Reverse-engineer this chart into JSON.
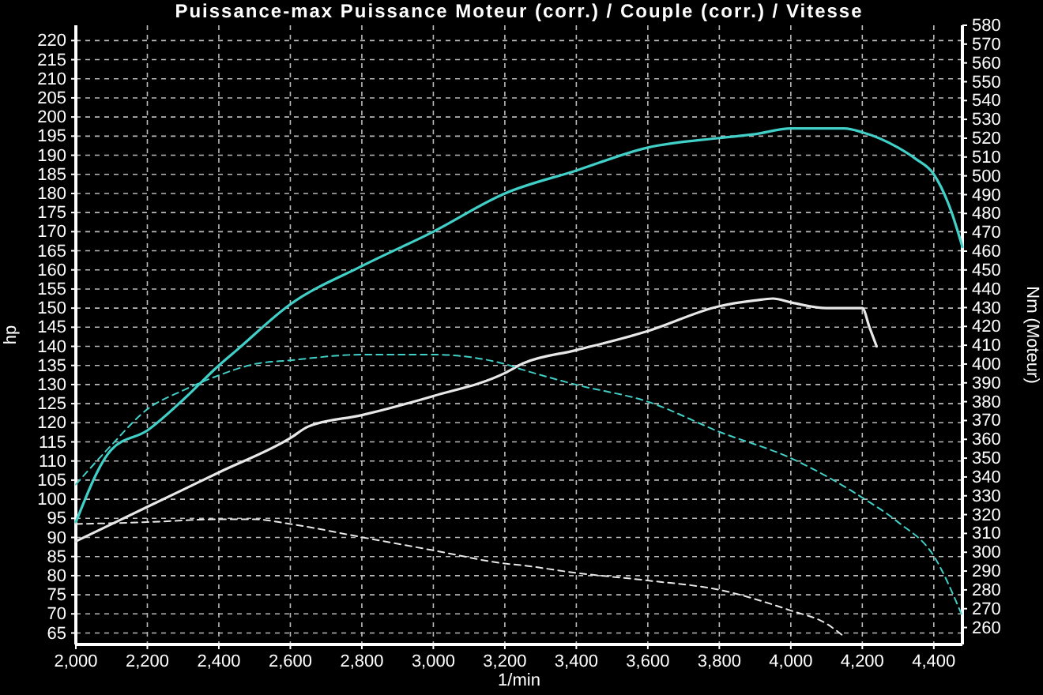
{
  "chart_data": {
    "type": "line",
    "title": "Puissance-max Puissance Moteur (corr.) / Couple (corr.) / Vitesse",
    "xlabel": "1/min",
    "ylabel": "hp",
    "y2label": "Nm (Moteur)",
    "xlim": [
      2000,
      4480
    ],
    "xticks": [
      {
        "value": 2000,
        "label": "2,000"
      },
      {
        "value": 2200,
        "label": "2,200"
      },
      {
        "value": 2400,
        "label": "2,400"
      },
      {
        "value": 2600,
        "label": "2,600"
      },
      {
        "value": 2800,
        "label": "2,800"
      },
      {
        "value": 3000,
        "label": "3,000"
      },
      {
        "value": 3200,
        "label": "3,200"
      },
      {
        "value": 3400,
        "label": "3,400"
      },
      {
        "value": 3600,
        "label": "3,600"
      },
      {
        "value": 3800,
        "label": "3,800"
      },
      {
        "value": 4000,
        "label": "4,000"
      },
      {
        "value": 4200,
        "label": "4,200"
      },
      {
        "value": 4400,
        "label": "4,400"
      }
    ],
    "ylim": [
      62,
      224
    ],
    "yticks": [
      65,
      70,
      75,
      80,
      85,
      90,
      95,
      100,
      105,
      110,
      115,
      120,
      125,
      130,
      135,
      140,
      145,
      150,
      155,
      160,
      165,
      170,
      175,
      180,
      185,
      190,
      195,
      200,
      205,
      210,
      215,
      220
    ],
    "y2lim": [
      251,
      580
    ],
    "y2ticks": [
      260,
      270,
      280,
      290,
      300,
      310,
      320,
      330,
      340,
      350,
      360,
      370,
      380,
      390,
      400,
      410,
      420,
      430,
      440,
      450,
      460,
      470,
      480,
      490,
      500,
      510,
      520,
      530,
      540,
      550,
      560,
      570,
      580
    ],
    "grid": true,
    "marker": "none",
    "series": [
      {
        "color": "#40d0c8",
        "line_style": "solid",
        "x": [
          2000,
          2100,
          2200,
          2300,
          2400,
          2450,
          2600,
          2800,
          3000,
          3200,
          3400,
          3600,
          3800,
          3900,
          4000,
          4150,
          4200,
          4300,
          4350,
          4400,
          4450,
          4480
        ],
        "values": [
          94,
          113,
          118,
          126,
          135,
          139,
          151,
          161,
          170,
          180,
          186,
          192,
          194.5,
          195.5,
          197,
          197,
          196,
          192,
          189,
          185,
          175,
          166
        ]
      },
      {
        "color": "#e8e8e8",
        "line_style": "solid",
        "x": [
          2000,
          2200,
          2400,
          2600,
          2650,
          2800,
          3000,
          3200,
          3250,
          3400,
          3600,
          3800,
          3900,
          3950,
          4000,
          4100,
          4200,
          4220,
          4240
        ],
        "values": [
          89,
          98,
          107,
          116,
          119,
          122,
          127,
          133,
          135.5,
          139,
          144,
          150.5,
          152,
          152.5,
          151.5,
          150,
          150,
          145,
          140
        ]
      },
      {
        "color": "#40d0c8",
        "line_style": "dashed",
        "axis": "y2",
        "x": [
          2000,
          2100,
          2200,
          2300,
          2400,
          2500,
          2600,
          2800,
          3000,
          3200,
          3250,
          3400,
          3600,
          3800,
          4000,
          4200,
          4300,
          4400,
          4480
        ],
        "values": [
          336,
          357,
          376,
          386,
          394,
          400,
          402,
          405,
          405,
          400,
          397,
          389,
          380,
          364,
          350,
          329,
          316,
          298,
          266
        ]
      },
      {
        "color": "#e8e8e8",
        "line_style": "dashed",
        "axis": "y2",
        "x": [
          2000,
          2200,
          2400,
          2500,
          2600,
          2800,
          3000,
          3200,
          3250,
          3400,
          3600,
          3800,
          4000,
          4100,
          4150
        ],
        "values": [
          315,
          316,
          317.5,
          317.5,
          315,
          308,
          301,
          294,
          293,
          289,
          285,
          280,
          269,
          262,
          255
        ]
      }
    ]
  }
}
